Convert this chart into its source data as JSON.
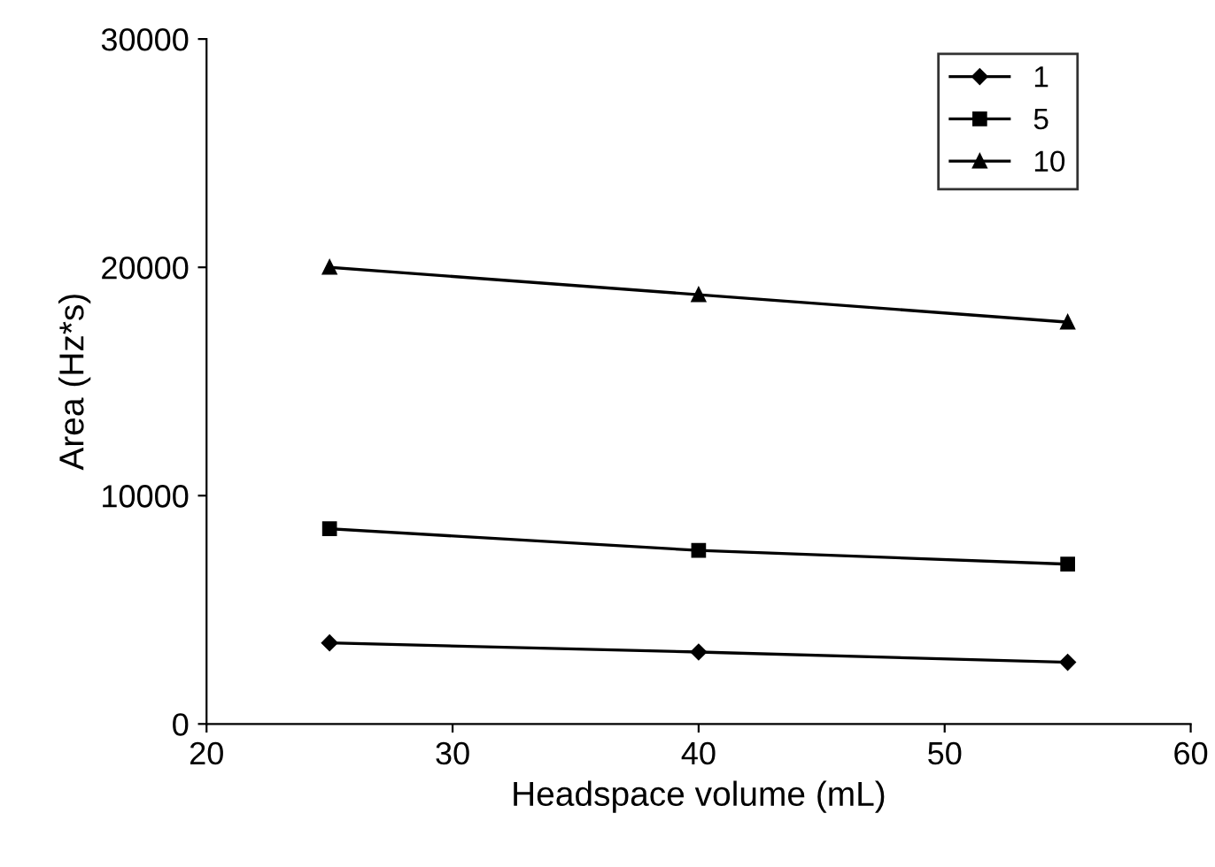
{
  "chart_data": {
    "type": "line",
    "xlabel": "Headspace volume (mL)",
    "ylabel": "Area (Hz*s)",
    "x": [
      25,
      40,
      55
    ],
    "series": [
      {
        "name": "1",
        "color": "#000000",
        "marker": "diamond",
        "values": [
          3550,
          3150,
          2700
        ]
      },
      {
        "name": "5",
        "color": "#000000",
        "marker": "square",
        "values": [
          8550,
          7600,
          7000
        ]
      },
      {
        "name": "10",
        "color": "#000000",
        "marker": "triangle",
        "values": [
          20000,
          18800,
          17600
        ]
      }
    ],
    "xlim": [
      20,
      60
    ],
    "xticks": [
      20,
      30,
      40,
      50,
      60
    ],
    "ylim": [
      0,
      30000
    ],
    "yticks": [
      0,
      10000,
      20000,
      30000
    ],
    "grid": false,
    "legend": "top right",
    "line_style": "solid"
  }
}
